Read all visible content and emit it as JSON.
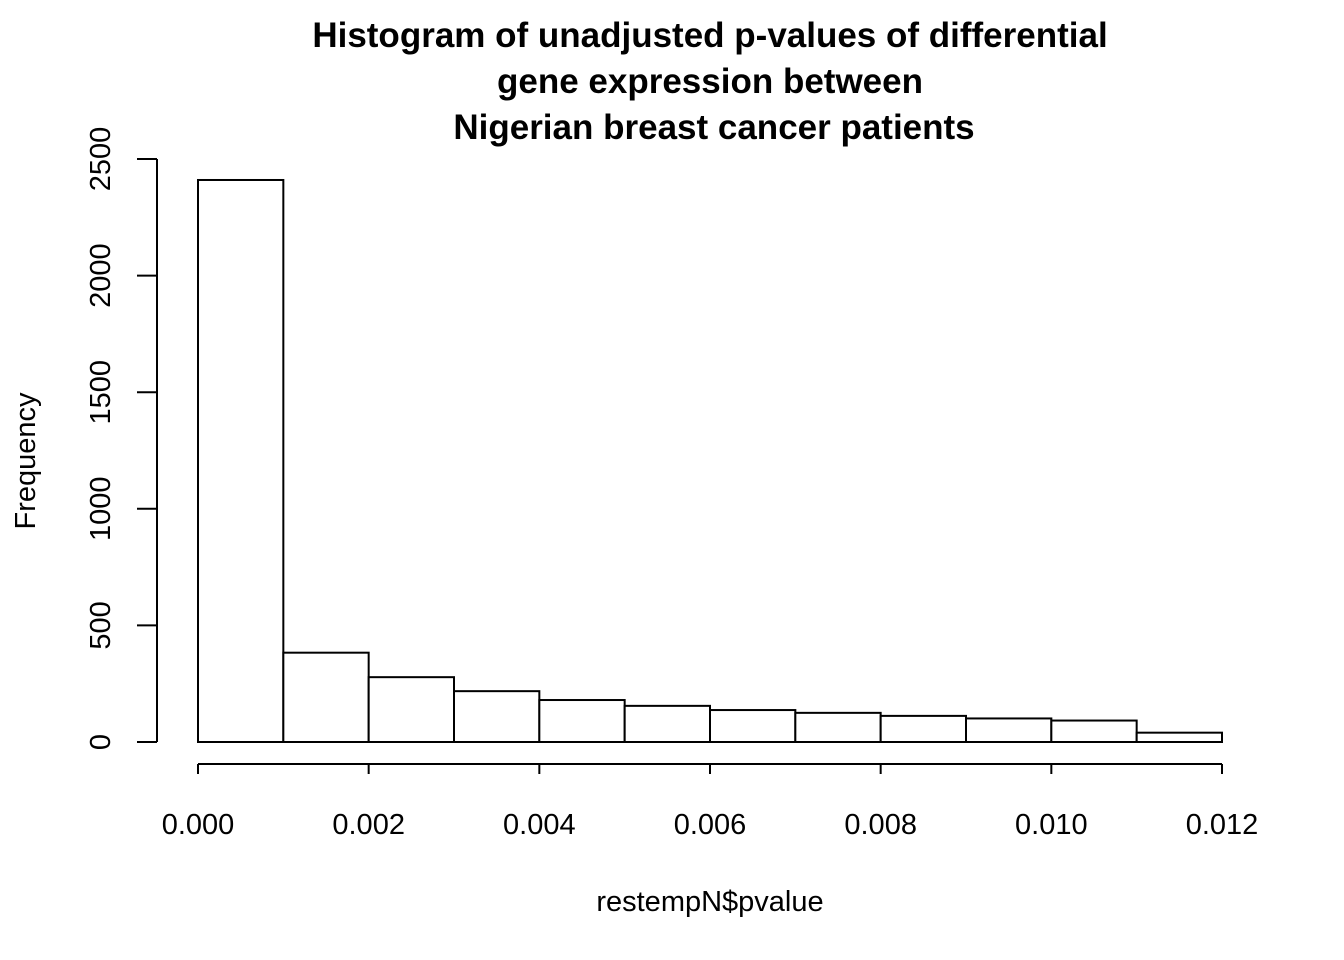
{
  "chart_data": {
    "type": "bar",
    "title": [
      "Histogram of unadjusted p-values of differential",
      "gene expression between",
      "Nigerian breast cancer patients"
    ],
    "xlabel": "restempN$pvalue",
    "ylabel": "Frequency",
    "bin_edges": [
      0.0,
      0.001,
      0.002,
      0.003,
      0.004,
      0.005,
      0.006,
      0.007,
      0.008,
      0.009,
      0.01,
      0.011,
      0.012
    ],
    "values": [
      2410,
      383,
      278,
      218,
      180,
      155,
      137,
      125,
      112,
      101,
      92,
      40
    ],
    "xlim": [
      0,
      0.012
    ],
    "ylim": [
      0,
      2500
    ],
    "x_ticks": [
      0.0,
      0.002,
      0.004,
      0.006,
      0.008,
      0.01,
      0.012
    ],
    "x_tick_labels": [
      "0.000",
      "0.002",
      "0.004",
      "0.006",
      "0.008",
      "0.010",
      "0.012"
    ],
    "y_ticks": [
      0,
      500,
      1000,
      1500,
      2000,
      2500
    ],
    "y_tick_labels": [
      "0",
      "500",
      "1000",
      "1500",
      "2000",
      "2500"
    ],
    "grid": false,
    "legend": "none",
    "bar_fill": "#ffffff",
    "bar_stroke": "#000000"
  }
}
